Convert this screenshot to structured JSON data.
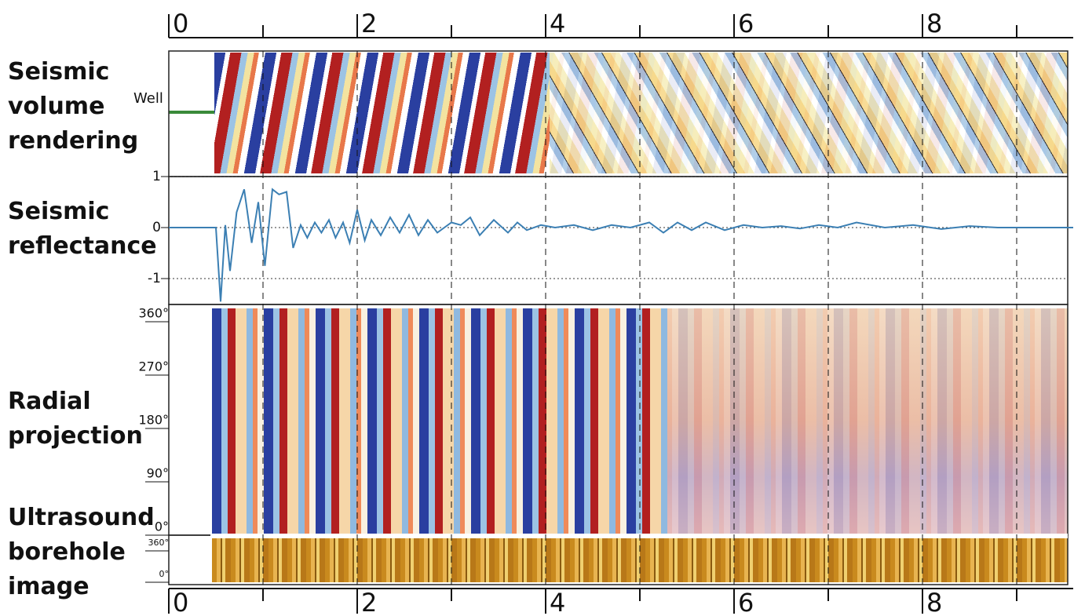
{
  "chart_data": {
    "type": "line",
    "xlim": [
      0,
      9.6
    ],
    "xticks": [
      0,
      2,
      4,
      6,
      8
    ],
    "x_minor_ticks": [
      1,
      3,
      5,
      7,
      9
    ],
    "panels": [
      {
        "label": "Seismic volume rendering"
      },
      {
        "label": "Seismic reflectance"
      },
      {
        "label": "Radial projection"
      },
      {
        "label": "Ultrasound borehole image"
      }
    ],
    "annotations": [
      "Well"
    ],
    "ylim": [
      -1.5,
      1
    ],
    "yticks": [
      1,
      0,
      -1
    ],
    "series": [
      {
        "color": "#3b7fb3",
        "x": [
          0.0,
          0.5,
          0.55,
          0.6,
          0.65,
          0.72,
          0.8,
          0.88,
          0.95,
          1.02,
          1.1,
          1.17,
          1.25,
          1.32,
          1.4,
          1.47,
          1.55,
          1.62,
          1.7,
          1.77,
          1.85,
          1.92,
          2.0,
          2.08,
          2.15,
          2.25,
          2.35,
          2.45,
          2.55,
          2.65,
          2.75,
          2.85,
          3.0,
          3.1,
          3.2,
          3.3,
          3.45,
          3.6,
          3.7,
          3.8,
          3.95,
          4.1,
          4.3,
          4.5,
          4.7,
          4.9,
          5.1,
          5.25,
          5.4,
          5.55,
          5.7,
          5.9,
          6.1,
          6.3,
          6.5,
          6.7,
          6.9,
          7.1,
          7.3,
          7.6,
          7.9,
          8.2,
          8.5,
          8.8,
          9.1,
          9.6
        ],
        "values": [
          0,
          0,
          -1.45,
          0.05,
          -0.85,
          0.3,
          0.75,
          -0.3,
          0.5,
          -0.75,
          0.75,
          0.65,
          0.7,
          -0.4,
          0.05,
          -0.2,
          0.1,
          -0.1,
          0.15,
          -0.2,
          0.1,
          -0.3,
          0.35,
          -0.25,
          0.15,
          -0.15,
          0.2,
          -0.1,
          0.25,
          -0.15,
          0.15,
          -0.1,
          0.1,
          0.05,
          0.2,
          -0.15,
          0.15,
          -0.1,
          0.1,
          -0.05,
          0.05,
          0.0,
          0.05,
          -0.05,
          0.05,
          0.0,
          0.1,
          -0.1,
          0.1,
          -0.05,
          0.1,
          -0.05,
          0.05,
          0.0,
          0.03,
          -0.02,
          0.05,
          0.0,
          0.1,
          0.0,
          0.05,
          -0.03,
          0.03,
          0.0,
          0.0,
          0.0
        ]
      }
    ],
    "radial_ylim": [
      0,
      360
    ],
    "radial_yticks": [
      {
        "value": 360,
        "label": "360°"
      },
      {
        "value": 270,
        "label": "270°"
      },
      {
        "value": 180,
        "label": "180°"
      },
      {
        "value": 90,
        "label": "90°"
      },
      {
        "value": 0,
        "label": "0°"
      }
    ],
    "ultrasound_ylim": [
      0,
      360
    ],
    "ultrasound_yticks": [
      {
        "value": 360,
        "label": "360°"
      },
      {
        "value": 0,
        "label": "0°"
      }
    ]
  }
}
